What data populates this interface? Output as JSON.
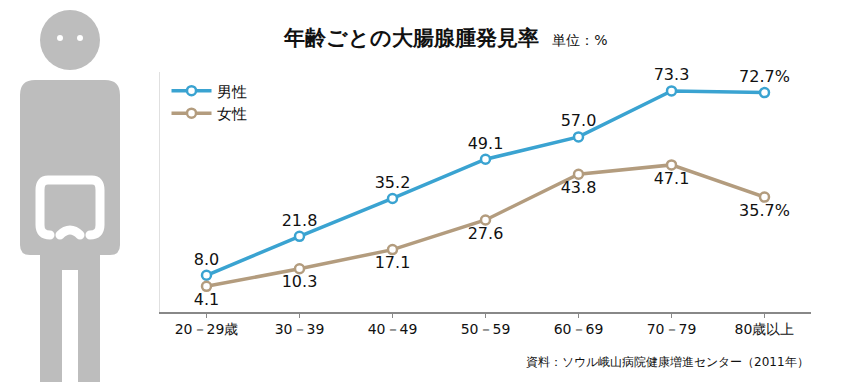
{
  "chart_data": {
    "type": "line",
    "title": "年齢ごとの大腸腺腫発見率",
    "subtitle": "単位：%",
    "source": "資料：ソウル峨山病院健康増進センター（2011年）",
    "categories": [
      "20－29歳",
      "30－39",
      "40－49",
      "50－59",
      "60－69",
      "70－79",
      "80歳以上"
    ],
    "series": [
      {
        "name": "男性",
        "color": "#3aa3d1",
        "marker": "circle",
        "values": [
          8.0,
          21.8,
          35.2,
          49.1,
          57.0,
          73.3,
          72.7
        ],
        "value_labels": [
          "8.0",
          "21.8",
          "35.2",
          "49.1",
          "57.0",
          "73.3",
          "72.7%"
        ]
      },
      {
        "name": "女性",
        "color": "#b39c7e",
        "marker": "circle",
        "values": [
          4.1,
          10.3,
          17.1,
          27.6,
          43.8,
          47.1,
          35.7
        ],
        "value_labels": [
          "4.1",
          "10.3",
          "17.1",
          "27.6",
          "43.8",
          "47.1",
          "35.7%"
        ]
      }
    ],
    "ylim": [
      -5,
      80
    ],
    "tick_labels": "x",
    "grid": false,
    "legend": "upper left",
    "data_labels": true
  }
}
